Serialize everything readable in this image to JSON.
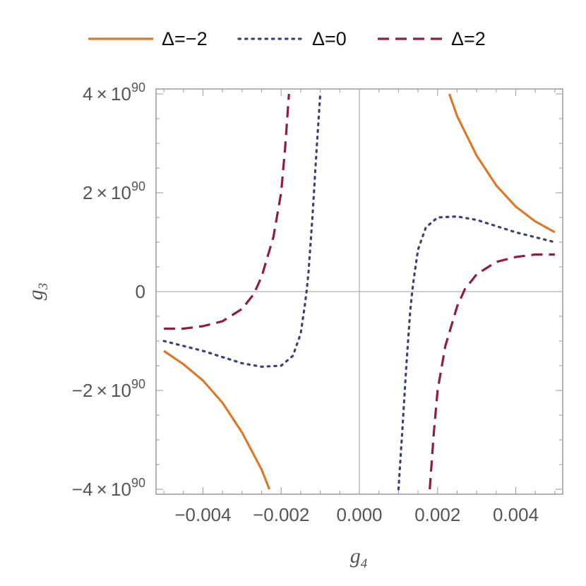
{
  "chart_data": {
    "type": "line",
    "title": "",
    "xlabel": {
      "base": "g",
      "sub": "4"
    },
    "ylabel": {
      "base": "g",
      "sub": "3"
    },
    "xlim": [
      -0.0052,
      0.0052
    ],
    "ylim": [
      -4.1,
      4.1
    ],
    "y_unit_exponent": 90,
    "grid": false,
    "legend_position": "top",
    "x_ticks": [
      {
        "value": -0.004,
        "label": "−0.004"
      },
      {
        "value": -0.002,
        "label": "−0.002"
      },
      {
        "value": 0.0,
        "label": "0.000"
      },
      {
        "value": 0.002,
        "label": "0.002"
      },
      {
        "value": 0.004,
        "label": "0.004"
      }
    ],
    "y_ticks": [
      {
        "value": 4,
        "mantissa": "4 × 10",
        "exp": "90"
      },
      {
        "value": 2,
        "mantissa": "2 × 10",
        "exp": "90"
      },
      {
        "value": 0,
        "mantissa": "0",
        "exp": ""
      },
      {
        "value": -2,
        "mantissa": "−2 × 10",
        "exp": "90"
      },
      {
        "value": -4,
        "mantissa": "−4 × 10",
        "exp": "90"
      }
    ],
    "series": [
      {
        "name": "Δ=−2",
        "color": "#d97a2b",
        "dash": "solid",
        "segments": [
          [
            [
              -0.005,
              -1.2
            ],
            [
              -0.0045,
              -1.47
            ],
            [
              -0.004,
              -1.8
            ],
            [
              -0.0035,
              -2.25
            ],
            [
              -0.003,
              -2.85
            ],
            [
              -0.0025,
              -3.6
            ],
            [
              -0.0023,
              -4.0
            ]
          ],
          [
            [
              0.0023,
              4.0
            ],
            [
              0.0025,
              3.55
            ],
            [
              0.003,
              2.75
            ],
            [
              0.0035,
              2.15
            ],
            [
              0.004,
              1.72
            ],
            [
              0.0045,
              1.42
            ],
            [
              0.005,
              1.2
            ]
          ]
        ]
      },
      {
        "name": "Δ=0",
        "color": "#3b4274",
        "dash": "dotted",
        "segments": [
          [
            [
              -0.005,
              -1.0
            ],
            [
              -0.004,
              -1.2
            ],
            [
              -0.003,
              -1.45
            ],
            [
              -0.0025,
              -1.52
            ],
            [
              -0.002,
              -1.5
            ],
            [
              -0.0017,
              -1.3
            ],
            [
              -0.0015,
              -0.85
            ],
            [
              -0.0014,
              -0.3
            ],
            [
              -0.00135,
              0.0
            ],
            [
              -0.0013,
              0.4
            ],
            [
              -0.0012,
              1.5
            ],
            [
              -0.0011,
              2.8
            ],
            [
              -0.001,
              4.0
            ]
          ],
          [
            [
              0.001,
              -4.0
            ],
            [
              0.0011,
              -2.8
            ],
            [
              0.0012,
              -1.5
            ],
            [
              0.0013,
              -0.4
            ],
            [
              0.00135,
              0.0
            ],
            [
              0.0014,
              0.3
            ],
            [
              0.0015,
              0.85
            ],
            [
              0.0017,
              1.3
            ],
            [
              0.002,
              1.5
            ],
            [
              0.0025,
              1.52
            ],
            [
              0.003,
              1.45
            ],
            [
              0.004,
              1.2
            ],
            [
              0.005,
              1.0
            ]
          ]
        ]
      },
      {
        "name": "Δ=2",
        "color": "#8b1f3c",
        "dash": "dashed",
        "segments": [
          [
            [
              -0.005,
              -0.75
            ],
            [
              -0.0045,
              -0.75
            ],
            [
              -0.004,
              -0.7
            ],
            [
              -0.0035,
              -0.6
            ],
            [
              -0.003,
              -0.35
            ],
            [
              -0.0027,
              -0.05
            ],
            [
              -0.0025,
              0.3
            ],
            [
              -0.0022,
              1.1
            ],
            [
              -0.002,
              2.0
            ],
            [
              -0.0019,
              2.9
            ],
            [
              -0.0018,
              4.0
            ]
          ],
          [
            [
              0.0018,
              -4.0
            ],
            [
              0.0019,
              -2.9
            ],
            [
              0.002,
              -2.0
            ],
            [
              0.0022,
              -1.1
            ],
            [
              0.0025,
              -0.3
            ],
            [
              0.0027,
              0.05
            ],
            [
              0.003,
              0.35
            ],
            [
              0.0035,
              0.6
            ],
            [
              0.004,
              0.7
            ],
            [
              0.0045,
              0.75
            ],
            [
              0.005,
              0.75
            ]
          ]
        ]
      }
    ]
  }
}
